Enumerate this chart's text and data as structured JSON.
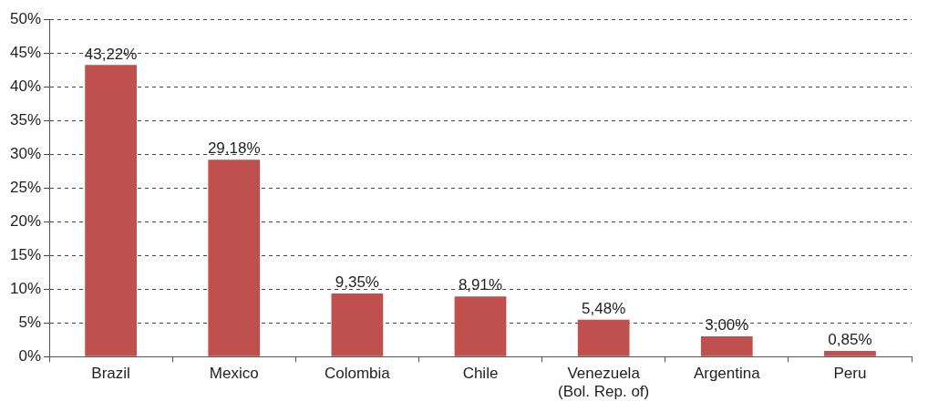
{
  "chart_data": {
    "type": "bar",
    "categories": [
      "Brazil",
      "Mexico",
      "Colombia",
      "Chile",
      "Venezuela\n(Bol. Rep. of)",
      "Argentina",
      "Peru"
    ],
    "values": [
      43.22,
      29.18,
      9.35,
      8.91,
      5.48,
      3.0,
      0.85
    ],
    "value_labels": [
      "43,22%",
      "29,18%",
      "9,35%",
      "8,91%",
      "5,48%",
      "3,00%",
      "0,85%"
    ],
    "color": "#c0504d",
    "ylim": [
      0,
      50
    ],
    "yticks": [
      {
        "value": 0,
        "label": "0%"
      },
      {
        "value": 5,
        "label": "5%"
      },
      {
        "value": 10,
        "label": "10%"
      },
      {
        "value": 15,
        "label": "15%"
      },
      {
        "value": 20,
        "label": "20%"
      },
      {
        "value": 25,
        "label": "25%"
      },
      {
        "value": 30,
        "label": "30%"
      },
      {
        "value": 35,
        "label": "35%"
      },
      {
        "value": 40,
        "label": "40%"
      },
      {
        "value": 45,
        "label": "45%"
      },
      {
        "value": 50,
        "label": "50%"
      }
    ],
    "grid": "y",
    "legend": false
  }
}
